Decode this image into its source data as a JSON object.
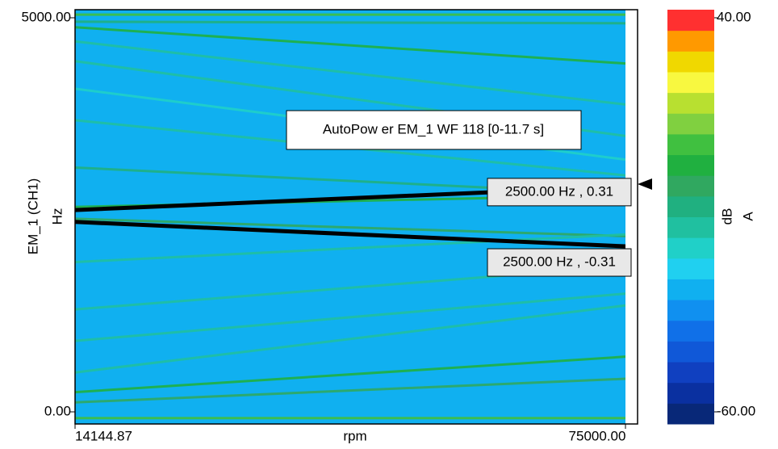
{
  "chart_data": {
    "type": "colormap",
    "title": "AutoPow er EM_1 WF 118 [0-11.7 s]",
    "x_label": "rpm",
    "y_label": "EM_1 (CH1)",
    "y_unit": "Hz",
    "xlim": [
      14144.87,
      75000
    ],
    "xticks": [
      {
        "value": 14144.87,
        "label": "14144.87"
      },
      {
        "value": 75000,
        "label": "75000.00"
      }
    ],
    "ylim": [
      0,
      5000
    ],
    "yticks": [
      {
        "value": 0,
        "label": "0.00"
      },
      {
        "value": 5000,
        "label": "5000.00"
      }
    ],
    "background_level": -28,
    "orders": [
      {
        "x": [
          14144.87,
          75000
        ],
        "y": [
          5040,
          5040
        ],
        "level": 8
      },
      {
        "x": [
          14144.87,
          75000
        ],
        "y": [
          4950,
          4930
        ],
        "level": -8
      },
      {
        "x": [
          14144.87,
          75000
        ],
        "y": [
          4880,
          4420
        ],
        "level": 0
      },
      {
        "x": [
          14144.87,
          75000
        ],
        "y": [
          4700,
          3900
        ],
        "level": -15
      },
      {
        "x": [
          14144.87,
          75000
        ],
        "y": [
          4450,
          3500
        ],
        "level": -15
      },
      {
        "x": [
          14144.87,
          75000
        ],
        "y": [
          4100,
          3200
        ],
        "level": -18
      },
      {
        "x": [
          14144.87,
          75000
        ],
        "y": [
          3700,
          3000
        ],
        "level": -15
      },
      {
        "x": [
          14144.87,
          75000
        ],
        "y": [
          3100,
          2760
        ],
        "level": -10
      },
      {
        "x": [
          14144.87,
          75000
        ],
        "y": [
          2600,
          2750
        ],
        "level": 0
      },
      {
        "x": [
          14144.87,
          75000
        ],
        "y": [
          2450,
          2230
        ],
        "level": -2
      },
      {
        "x": [
          14144.87,
          75000
        ],
        "y": [
          1900,
          2250
        ],
        "level": -15
      },
      {
        "x": [
          14144.87,
          75000
        ],
        "y": [
          1300,
          1850
        ],
        "level": -15
      },
      {
        "x": [
          14144.87,
          75000
        ],
        "y": [
          900,
          1500
        ],
        "level": -15
      },
      {
        "x": [
          14144.87,
          75000
        ],
        "y": [
          500,
          1350
        ],
        "level": -12
      },
      {
        "x": [
          14144.87,
          75000
        ],
        "y": [
          250,
          700
        ],
        "level": 0
      },
      {
        "x": [
          14144.87,
          75000
        ],
        "y": [
          120,
          420
        ],
        "level": -2
      },
      {
        "x": [
          14144.87,
          75000
        ],
        "y": [
          -80,
          -80
        ],
        "level": 5
      }
    ],
    "cursors": [
      {
        "label": "2500.00 Hz , 0.31",
        "x": [
          14144.87,
          75000
        ],
        "y": [
          2560,
          2860
        ]
      },
      {
        "label": "2500.00 Hz , -0.31",
        "x": [
          14144.87,
          75000
        ],
        "y": [
          2410,
          2100
        ]
      }
    ],
    "colorbar": {
      "label": "dB",
      "unit": "A",
      "clim": [
        -60,
        40
      ],
      "ticks": [
        {
          "value": -60,
          "label": "-60.00"
        },
        {
          "value": 40,
          "label": "40.00"
        }
      ],
      "colors": [
        "#082878",
        "#0a30a0",
        "#1040c0",
        "#1058d8",
        "#1070e8",
        "#1090f0",
        "#10b0f0",
        "#20d0f0",
        "#20d0c8",
        "#20c0a0",
        "#20b080",
        "#30a860",
        "#20b040",
        "#40c040",
        "#80d040",
        "#b8e030",
        "#f8f840",
        "#f0d800",
        "#ff9900",
        "#ff3030"
      ]
    }
  }
}
